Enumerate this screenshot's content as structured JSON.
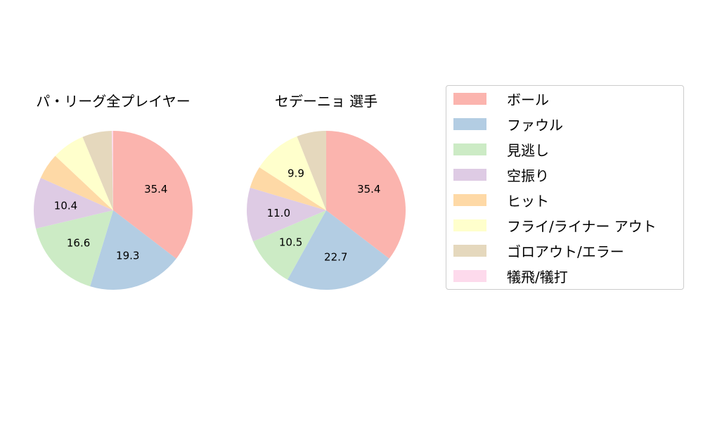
{
  "chart_data": [
    {
      "type": "pie",
      "title": "パ・リーグ全プレイヤー",
      "categories": [
        "ボール",
        "ファウル",
        "見逃し",
        "空振り",
        "ヒット",
        "フライ/ライナー アウト",
        "ゴロアウト/エラー",
        "犠飛/犠打"
      ],
      "values": [
        35.4,
        19.3,
        16.6,
        10.4,
        5.3,
        6.7,
        6.0,
        0.3
      ],
      "labels_shown": [
        "35.4",
        "19.3",
        "16.6",
        "10.4",
        "",
        "",
        "",
        ""
      ],
      "start_angle": 90,
      "direction": "clockwise"
    },
    {
      "type": "pie",
      "title": "セデーニョ  選手",
      "categories": [
        "ボール",
        "ファウル",
        "見逃し",
        "空振り",
        "ヒット",
        "フライ/ライナー アウト",
        "ゴロアウト/エラー",
        "犠飛/犠打"
      ],
      "values": [
        35.4,
        22.7,
        10.5,
        11.0,
        4.5,
        9.9,
        6.0,
        0.0
      ],
      "labels_shown": [
        "35.4",
        "22.7",
        "10.5",
        "11.0",
        "",
        "9.9",
        "",
        ""
      ],
      "start_angle": 90,
      "direction": "clockwise"
    }
  ],
  "titles": {
    "left": "パ・リーグ全プレイヤー",
    "right": "セデーニョ  選手"
  },
  "legend": {
    "position": "right",
    "items": [
      {
        "label": "ボール",
        "color": "#fbb4ae"
      },
      {
        "label": "ファウル",
        "color": "#b3cde3"
      },
      {
        "label": "見逃し",
        "color": "#ccebc5"
      },
      {
        "label": "空振り",
        "color": "#decbe4"
      },
      {
        "label": "ヒット",
        "color": "#fed9a6"
      },
      {
        "label": "フライ/ライナー アウト",
        "color": "#ffffcc"
      },
      {
        "label": "ゴロアウト/エラー",
        "color": "#e5d8bd"
      },
      {
        "label": "犠飛/犠打",
        "color": "#fddaec"
      }
    ]
  }
}
